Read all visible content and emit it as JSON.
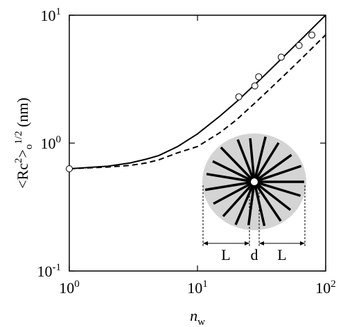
{
  "chart_data": {
    "type": "line",
    "xlabel": "n_{w}",
    "ylabel": "<Rc^{2}>_{o}^{1/2} (nm)",
    "log_x": true,
    "log_y": true,
    "xlim": [
      1,
      100
    ],
    "ylim": [
      0.1,
      10
    ],
    "xticks": [
      {
        "value": 1,
        "label": "10^{0}"
      },
      {
        "value": 10,
        "label": "10^{1}"
      },
      {
        "value": 100,
        "label": "10^{2}"
      }
    ],
    "yticks": [
      {
        "value": 0.1,
        "label": "10^{-1}"
      },
      {
        "value": 1,
        "label": "10^{0}"
      },
      {
        "value": 10,
        "label": "10^{1}"
      }
    ],
    "series": [
      {
        "color": "#000000",
        "linestyle": "solid",
        "x": [
          1,
          2,
          3,
          4,
          5,
          7,
          10,
          15,
          20,
          30,
          50,
          70,
          100
        ],
        "values": [
          0.63,
          0.66,
          0.7,
          0.75,
          0.8,
          0.94,
          1.18,
          1.63,
          2.09,
          3.06,
          5.04,
          7.03,
          10.02
        ]
      },
      {
        "color": "#000000",
        "linestyle": "dashed",
        "x": [
          1,
          2,
          3,
          4,
          5,
          7,
          10,
          15,
          20,
          30,
          50,
          70,
          100
        ],
        "values": [
          0.63,
          0.65,
          0.67,
          0.7,
          0.74,
          0.84,
          0.94,
          1.21,
          1.51,
          2.19,
          3.56,
          4.94,
          7.03
        ]
      }
    ],
    "points": {
      "color": "#000000",
      "x": [
        1,
        21,
        28,
        30,
        45,
        62,
        78
      ],
      "values": [
        0.63,
        2.3,
        2.8,
        3.3,
        4.7,
        5.8,
        7.0
      ]
    },
    "inset_labels": [
      "L",
      "d",
      "L"
    ]
  }
}
